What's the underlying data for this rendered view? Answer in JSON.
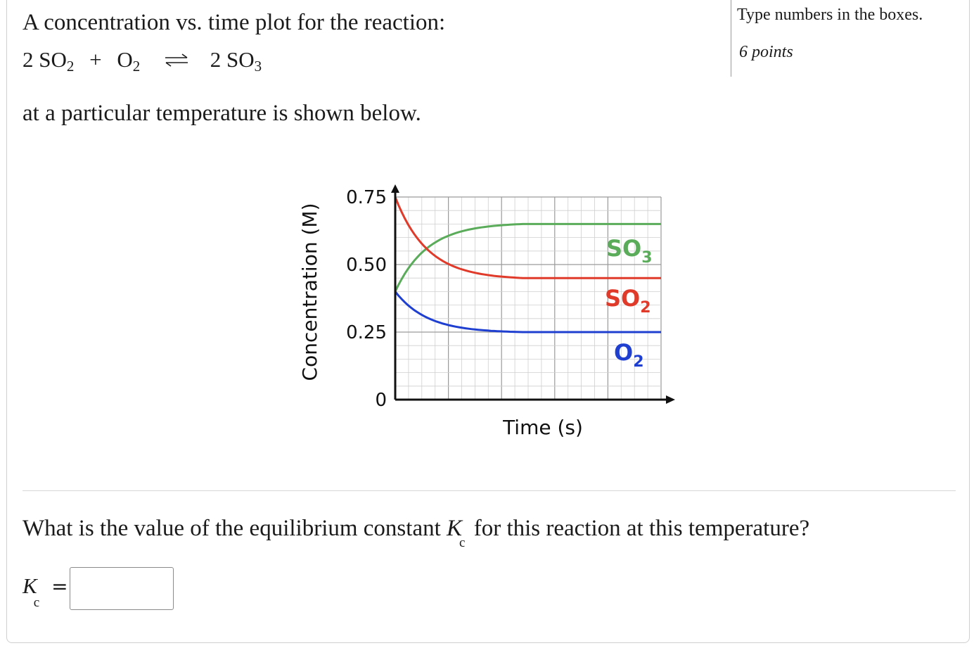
{
  "intro": "A concentration vs. time plot for the reaction:",
  "equation": {
    "left_coef": "2 SO",
    "left_sub": "2",
    "plus": "+",
    "second": "O",
    "second_sub": "2",
    "right_coef": "2 SO",
    "right_sub": "3"
  },
  "after": "at a particular temperature is shown below.",
  "side": {
    "instructions": "Type numbers in the boxes.",
    "points": "6 points"
  },
  "chart_data": {
    "type": "line",
    "ylabel": "Concentration (M)",
    "xlabel": "Time (s)",
    "yticks": [
      "0.75",
      "0.50",
      "0.25",
      "0"
    ],
    "ylim": [
      0,
      0.75
    ],
    "grid": true,
    "series": [
      {
        "name": "SO",
        "name_sub": "3",
        "color": "#5aab5a",
        "start": 0.4,
        "equilibrium": 0.65
      },
      {
        "name": "SO",
        "name_sub": "2",
        "color": "#e03a2a",
        "start": 0.75,
        "equilibrium": 0.45
      },
      {
        "name": "O",
        "name_sub": "2",
        "color": "#1f3fd1",
        "start": 0.4,
        "equilibrium": 0.25
      }
    ]
  },
  "question": {
    "before": "What is the value of the equilibrium constant ",
    "k": "K",
    "sub": "c",
    "after": " for this reaction at this temperature?"
  },
  "answer": {
    "k": "K",
    "sub": "c",
    "eq": "=",
    "value": ""
  }
}
